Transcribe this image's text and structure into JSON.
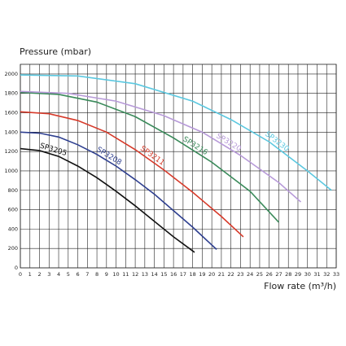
{
  "chart_data": {
    "type": "line",
    "ylabel": "Pressure (mbar)",
    "xlabel": "Flow rate (m³/h)",
    "xlim": [
      0,
      33
    ],
    "xticks": [
      0,
      1,
      2,
      3,
      4,
      5,
      6,
      7,
      8,
      9,
      10,
      11,
      12,
      13,
      14,
      15,
      16,
      17,
      18,
      19,
      20,
      21,
      22,
      23,
      24,
      25,
      26,
      27,
      28,
      29,
      30,
      31,
      32,
      33
    ],
    "ylim": [
      0,
      2100
    ],
    "yticks": [
      0,
      200,
      400,
      600,
      800,
      1000,
      1200,
      1400,
      1600,
      1800,
      2000
    ],
    "grid": true,
    "series": [
      {
        "name": "SP3205",
        "color": "#111111",
        "x": [
          0,
          2,
          4,
          6,
          8,
          10,
          12,
          14,
          16,
          18.2
        ],
        "values": [
          1230,
          1210,
          1150,
          1050,
          930,
          790,
          640,
          480,
          320,
          160
        ]
      },
      {
        "name": "SP3208",
        "color": "#2e3f8f",
        "x": [
          0,
          2,
          4,
          6,
          8,
          10,
          12,
          14,
          16,
          18,
          20.5
        ],
        "values": [
          1400,
          1390,
          1350,
          1270,
          1170,
          1050,
          910,
          760,
          590,
          420,
          190
        ]
      },
      {
        "name": "SP3211",
        "color": "#d63a2a",
        "x": [
          0,
          3,
          6,
          9,
          12,
          15,
          18,
          21,
          23.3
        ],
        "values": [
          1610,
          1590,
          1520,
          1400,
          1220,
          1010,
          780,
          530,
          320
        ]
      },
      {
        "name": "SP3216",
        "color": "#3a8a5a",
        "x": [
          0,
          4,
          8,
          12,
          16,
          20,
          24,
          27
        ],
        "values": [
          1810,
          1790,
          1710,
          1560,
          1340,
          1090,
          790,
          470
        ]
      },
      {
        "name": "SP3220",
        "color": "#b79ad8",
        "x": [
          0,
          5,
          10,
          15,
          19,
          23,
          27,
          29.3
        ],
        "values": [
          1820,
          1800,
          1720,
          1570,
          1400,
          1160,
          880,
          680
        ]
      },
      {
        "name": "SP3230",
        "color": "#5bc8e0",
        "x": [
          0,
          6,
          12,
          18,
          22,
          26,
          30,
          32.5
        ],
        "values": [
          1990,
          1980,
          1900,
          1720,
          1530,
          1300,
          1000,
          800
        ]
      }
    ]
  }
}
